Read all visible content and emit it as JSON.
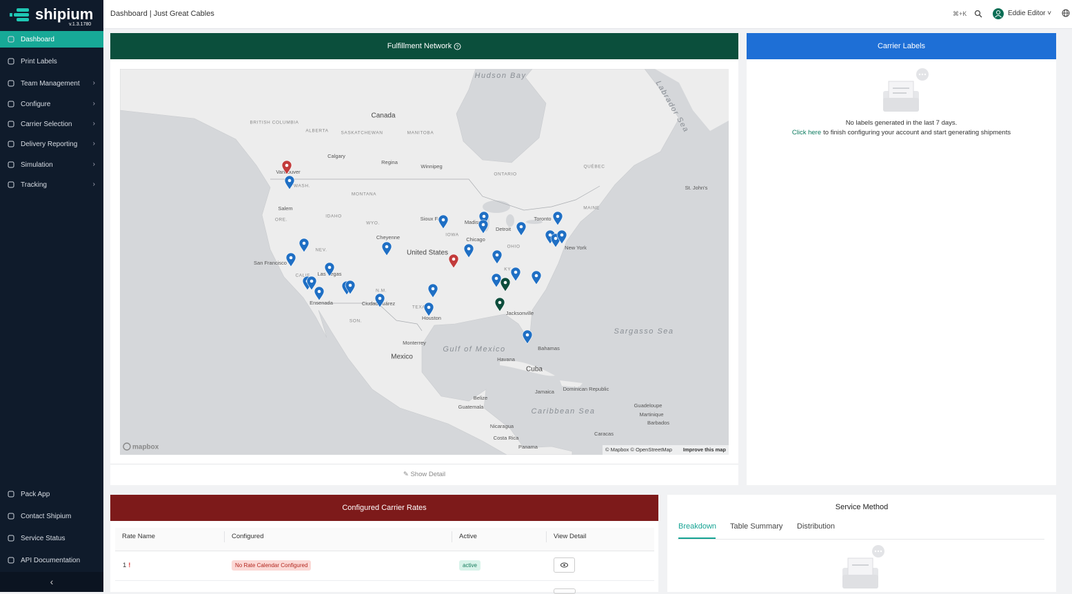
{
  "sidebar": {
    "logo": "shipium",
    "version": "v.1.3.1780",
    "nav": [
      "Dashboard",
      "Print Labels",
      "Team Management",
      "Configure",
      "Carrier Selection",
      "Delivery Reporting",
      "Simulation",
      "Tracking"
    ],
    "footer_nav": [
      "Pack App",
      "Contact Shipium",
      "Service Status",
      "API Documentation"
    ]
  },
  "header": {
    "breadcrumb": "Dashboard | Just Great Cables",
    "shortcut": "⌘+K",
    "user": "Eddie Editor"
  },
  "fulfillment_network": {
    "title": "Fulfillment Network",
    "map_labels": [
      "Hudson Bay",
      "Labrador Sea",
      "Canada",
      "BRITISH COLUMBIA",
      "ALBERTA",
      "SASKATCHEWAN",
      "MANITOBA",
      "ONTARIO",
      "QUÉBEC",
      "Calgary",
      "Regina",
      "Winnipeg",
      "Vancouver",
      "WASH.",
      "MONTANA",
      "Salem",
      "ORE.",
      "IDAHO",
      "WYO.",
      "Cheyenne",
      "NEV.",
      "San Francisco",
      "CALIF.",
      "Las Vegas",
      "United States",
      "Sioux Falls",
      "IOWA",
      "Madison",
      "Chicago",
      "Detroit",
      "Toronto",
      "OHIO",
      "MAINE",
      "New York",
      "KY.",
      "TEXAS",
      "Houston",
      "N.M.",
      "Ciudad Juárez",
      "SON.",
      "Ensenada",
      "Monterrey",
      "Mexico",
      "Gulf of Mexico",
      "Havana",
      "Cuba",
      "Bahamas",
      "Jacksonville",
      "Sargasso Sea",
      "Caribbean Sea",
      "Jamaica",
      "Dominican Republic",
      "Guatemala",
      "Belize",
      "Nicaragua",
      "Costa Rica",
      "Panama",
      "Caracas",
      "Barbados",
      "Guadeloupe",
      "Martinique",
      "St. John's"
    ],
    "map_logo": "mapbox",
    "attribution": "© Mapbox © OpenStreetMap",
    "improve": "Improve this map",
    "show_detail": "Show Detail"
  },
  "carrier_labels": {
    "title": "Carrier Labels",
    "empty_message": "No labels generated in the last 7 days.",
    "link": "Click here",
    "link_suffix": "to finish configuring your account and start generating shipments"
  },
  "carrier_rates": {
    "title": "Configured Carrier Rates",
    "columns": [
      "Rate Name",
      "Configured",
      "Active",
      "View Detail"
    ],
    "rows": [
      [
        "1",
        "No Rate Calendar Configured",
        "active"
      ]
    ]
  },
  "service_method": {
    "title": "Service Method",
    "tabs": [
      "Breakdown",
      "Table Summary",
      "Distribution"
    ]
  }
}
